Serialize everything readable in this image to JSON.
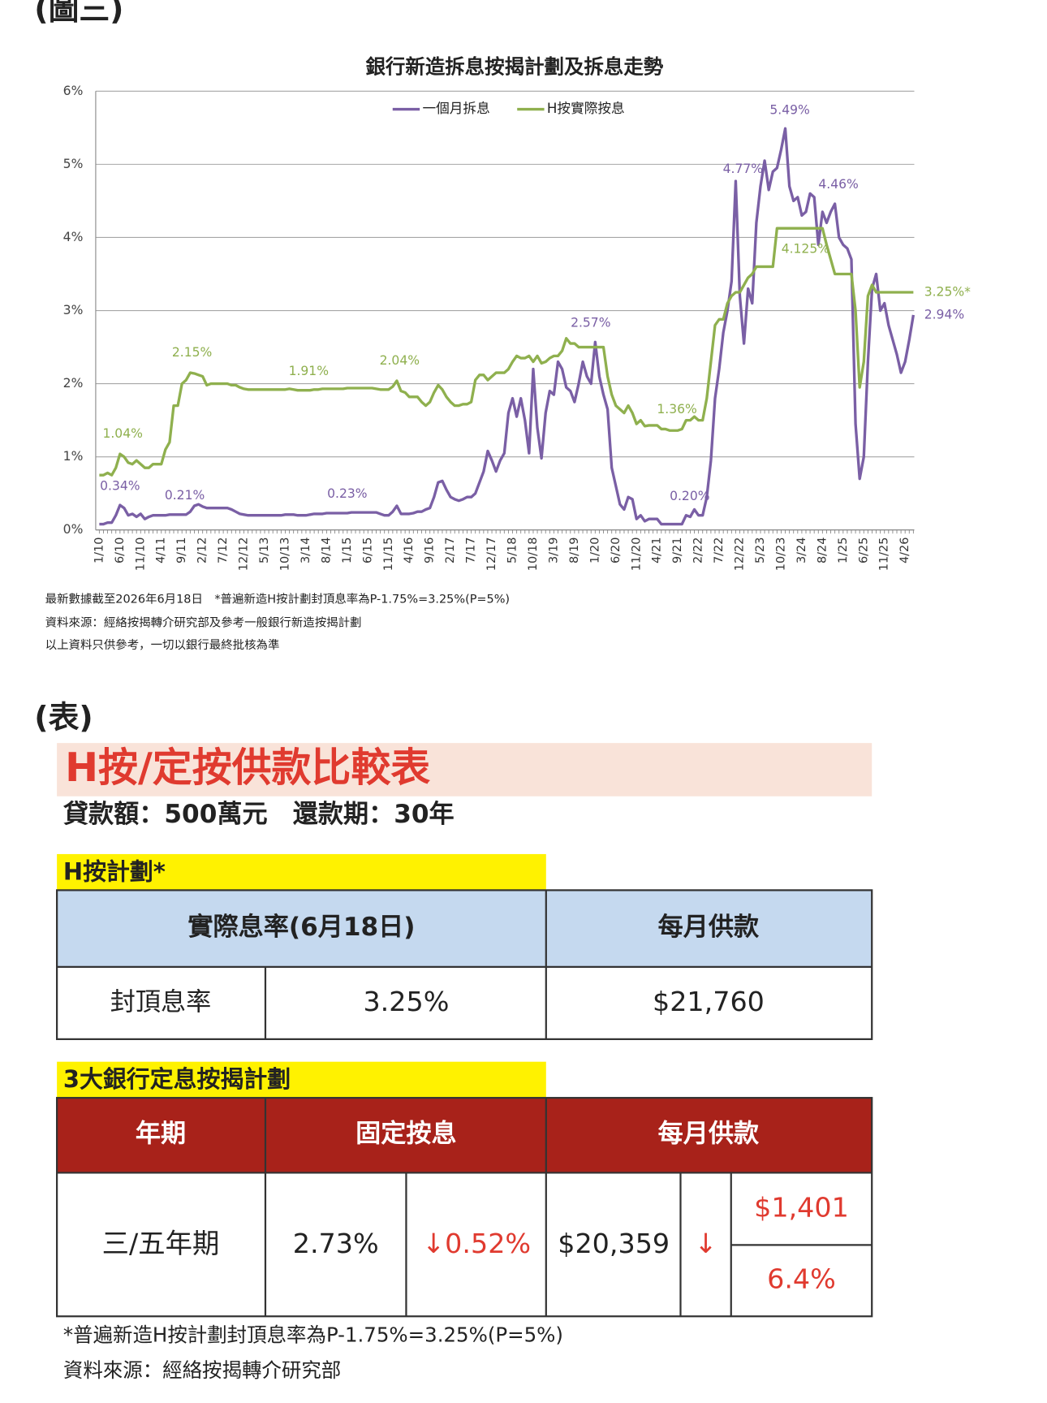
{
  "headers": {
    "figure": "(圖三)",
    "table": "(表)"
  },
  "chart_data": {
    "type": "line",
    "title": "銀行新造拆息按揭計劃及拆息走勢",
    "categories": [
      "1/10",
      null,
      null,
      null,
      null,
      "6/10",
      null,
      null,
      null,
      null,
      "11/10",
      null,
      null,
      null,
      null,
      "4/11",
      null,
      null,
      null,
      null,
      "9/11",
      null,
      null,
      null,
      null,
      "2/12",
      null,
      null,
      null,
      null,
      "7/12",
      null,
      null,
      null,
      null,
      "12/12",
      null,
      null,
      null,
      null,
      "5/13",
      null,
      null,
      null,
      null,
      "10/13",
      null,
      null,
      null,
      null,
      "3/14",
      null,
      null,
      null,
      null,
      "8/14",
      null,
      null,
      null,
      null,
      "1/15",
      null,
      null,
      null,
      null,
      "6/15",
      null,
      null,
      null,
      null,
      "11/15",
      null,
      null,
      null,
      null,
      "4/16",
      null,
      null,
      null,
      null,
      "9/16",
      null,
      null,
      null,
      null,
      "2/17",
      null,
      null,
      null,
      null,
      "7/17",
      null,
      null,
      null,
      null,
      "12/17",
      null,
      null,
      null,
      null,
      "5/18",
      null,
      null,
      null,
      null,
      "10/18",
      null,
      null,
      null,
      null,
      "3/19",
      null,
      null,
      null,
      null,
      "8/19",
      null,
      null,
      null,
      null,
      "1/20",
      null,
      null,
      null,
      null,
      "6/20",
      null,
      null,
      null,
      null,
      "11/20",
      null,
      null,
      null,
      null,
      "4/21",
      null,
      null,
      null,
      null,
      "9/21",
      null,
      null,
      null,
      null,
      "2/22",
      null,
      null,
      null,
      null,
      "7/22",
      null,
      null,
      null,
      null,
      "12/22",
      null,
      null,
      null,
      null,
      "5/23",
      null,
      null,
      null,
      null,
      "10/23",
      null,
      null,
      null,
      null,
      "3/24",
      null,
      null,
      null,
      null,
      "8/24",
      null,
      null,
      null,
      null,
      "1/25",
      null,
      null,
      null,
      null,
      "6/25",
      null,
      null,
      null,
      null,
      "11/25",
      null,
      null,
      null,
      null,
      "4/26",
      null,
      null
    ],
    "series": [
      {
        "name": "一個月拆息",
        "color": "#7a5fa5",
        "values": [
          0.08,
          0.08,
          0.1,
          0.1,
          0.2,
          0.34,
          0.3,
          0.2,
          0.22,
          0.18,
          0.22,
          0.15,
          0.18,
          0.2,
          0.2,
          0.2,
          0.2,
          0.21,
          0.21,
          0.21,
          0.21,
          0.21,
          0.25,
          0.33,
          0.35,
          0.32,
          0.3,
          0.3,
          0.3,
          0.3,
          0.3,
          0.3,
          0.28,
          0.25,
          0.22,
          0.21,
          0.2,
          0.2,
          0.2,
          0.2,
          0.2,
          0.2,
          0.2,
          0.2,
          0.2,
          0.21,
          0.21,
          0.21,
          0.2,
          0.2,
          0.2,
          0.21,
          0.22,
          0.22,
          0.22,
          0.23,
          0.23,
          0.23,
          0.23,
          0.23,
          0.23,
          0.24,
          0.24,
          0.24,
          0.24,
          0.24,
          0.24,
          0.24,
          0.22,
          0.2,
          0.2,
          0.25,
          0.33,
          0.22,
          0.22,
          0.22,
          0.23,
          0.25,
          0.25,
          0.28,
          0.3,
          0.45,
          0.65,
          0.67,
          0.55,
          0.45,
          0.42,
          0.4,
          0.42,
          0.45,
          0.45,
          0.5,
          0.65,
          0.8,
          1.08,
          0.95,
          0.8,
          0.95,
          1.05,
          1.6,
          1.8,
          1.55,
          1.8,
          1.5,
          1.05,
          2.2,
          1.4,
          0.98,
          1.6,
          1.9,
          1.85,
          2.3,
          2.2,
          1.95,
          1.9,
          1.75,
          2.0,
          2.3,
          2.1,
          2.0,
          2.57,
          2.1,
          1.85,
          1.65,
          0.85,
          0.6,
          0.35,
          0.28,
          0.45,
          0.42,
          0.15,
          0.2,
          0.12,
          0.15,
          0.15,
          0.15,
          0.08,
          0.08,
          0.08,
          0.08,
          0.08,
          0.08,
          0.2,
          0.18,
          0.28,
          0.2,
          0.2,
          0.45,
          0.95,
          1.8,
          2.2,
          2.7,
          3.0,
          3.4,
          4.77,
          3.2,
          2.55,
          3.3,
          3.1,
          4.2,
          4.7,
          5.05,
          4.65,
          4.9,
          4.95,
          5.2,
          5.49,
          4.7,
          4.5,
          4.55,
          4.3,
          4.35,
          4.6,
          4.55,
          3.9,
          4.35,
          4.2,
          4.35,
          4.46,
          4.0,
          3.9,
          3.85,
          3.7,
          1.45,
          0.7,
          1.0,
          2.3,
          3.3,
          3.5,
          3.0,
          3.1,
          2.8,
          2.6,
          2.4,
          2.15,
          2.3,
          2.6,
          2.94
        ]
      },
      {
        "name": "H按實際按息",
        "color": "#8fb04e",
        "values": [
          0.75,
          0.75,
          0.78,
          0.75,
          0.85,
          1.04,
          1.0,
          0.92,
          0.9,
          0.95,
          0.9,
          0.85,
          0.85,
          0.9,
          0.9,
          0.9,
          1.1,
          1.2,
          1.7,
          1.7,
          2.0,
          2.05,
          2.15,
          2.14,
          2.12,
          2.1,
          1.98,
          2.0,
          2.0,
          2.0,
          2.0,
          2.0,
          1.98,
          1.98,
          1.95,
          1.93,
          1.92,
          1.92,
          1.92,
          1.92,
          1.92,
          1.92,
          1.92,
          1.92,
          1.92,
          1.92,
          1.93,
          1.92,
          1.91,
          1.91,
          1.91,
          1.91,
          1.92,
          1.92,
          1.93,
          1.93,
          1.93,
          1.93,
          1.93,
          1.93,
          1.94,
          1.94,
          1.94,
          1.94,
          1.94,
          1.94,
          1.94,
          1.93,
          1.92,
          1.92,
          1.92,
          1.96,
          2.04,
          1.9,
          1.88,
          1.82,
          1.82,
          1.82,
          1.75,
          1.7,
          1.75,
          1.88,
          1.98,
          1.92,
          1.82,
          1.75,
          1.7,
          1.7,
          1.72,
          1.72,
          1.75,
          2.05,
          2.12,
          2.12,
          2.05,
          2.1,
          2.15,
          2.15,
          2.15,
          2.2,
          2.3,
          2.38,
          2.35,
          2.35,
          2.38,
          2.3,
          2.38,
          2.28,
          2.3,
          2.35,
          2.38,
          2.38,
          2.45,
          2.62,
          2.55,
          2.55,
          2.5,
          2.5,
          2.5,
          2.5,
          2.5,
          2.5,
          2.5,
          2.1,
          1.85,
          1.7,
          1.65,
          1.6,
          1.7,
          1.6,
          1.45,
          1.5,
          1.42,
          1.43,
          1.43,
          1.43,
          1.38,
          1.38,
          1.36,
          1.36,
          1.36,
          1.38,
          1.5,
          1.5,
          1.55,
          1.5,
          1.5,
          1.8,
          2.3,
          2.8,
          2.88,
          2.88,
          3.1,
          3.2,
          3.25,
          3.25,
          3.35,
          3.45,
          3.5,
          3.6,
          3.6,
          3.6,
          3.6,
          3.6,
          4.125,
          4.125,
          4.125,
          4.125,
          4.125,
          4.125,
          4.125,
          4.125,
          4.125,
          4.125,
          4.125,
          4.125,
          3.9,
          3.7,
          3.5,
          3.5,
          3.5,
          3.5,
          3.5,
          3.0,
          1.95,
          2.3,
          3.2,
          3.35,
          3.25,
          3.25,
          3.25,
          3.25,
          3.25,
          3.25,
          3.25,
          3.25,
          3.25,
          3.25
        ]
      }
    ],
    "annotations": [
      {
        "series": 0,
        "point": 5,
        "text": "0.34%"
      },
      {
        "series": 0,
        "point": 20,
        "text": "0.21%"
      },
      {
        "series": 0,
        "point": 60,
        "text": "0.23%"
      },
      {
        "series": 0,
        "point": 120,
        "text": "2.57%"
      },
      {
        "series": 0,
        "point": 142,
        "text": "0.20%"
      },
      {
        "series": 0,
        "point": 154,
        "text": "4.77%"
      },
      {
        "series": 0,
        "point": 166,
        "text": "5.49%"
      },
      {
        "series": 0,
        "point": 178,
        "text": "4.46%"
      },
      {
        "series": 0,
        "point": 197,
        "text": "2.94%"
      },
      {
        "series": 1,
        "point": 5,
        "text": "1.04%"
      },
      {
        "series": 1,
        "point": 22,
        "text": "2.15%"
      },
      {
        "series": 1,
        "point": 50,
        "text": "1.91%"
      },
      {
        "series": 1,
        "point": 72,
        "text": "2.04%"
      },
      {
        "series": 1,
        "point": 140,
        "text": "1.36%"
      },
      {
        "series": 1,
        "point": 170,
        "text": "4.125%"
      },
      {
        "series": 1,
        "point": 197,
        "text": "3.25%*"
      }
    ],
    "ylim": [
      0,
      6
    ],
    "yticks": [
      {
        "value": 0,
        "label": "0%"
      },
      {
        "value": 1,
        "label": "1%"
      },
      {
        "value": 2,
        "label": "2%"
      },
      {
        "value": 3,
        "label": "3%"
      },
      {
        "value": 4,
        "label": "4%"
      },
      {
        "value": 5,
        "label": "5%"
      },
      {
        "value": 6,
        "label": "6%"
      }
    ],
    "grid": true,
    "legend": "top"
  },
  "chart_notes": [
    "最新數據截至2026年6月18日　*普遍新造H按計劃封頂息率為P-1.75%=3.25%(P=5%)",
    "資料來源：經絡按揭轉介研究部及參考一般銀行新造按揭計劃",
    "以上資料只供參考，一切以銀行最終批核為準"
  ],
  "comparison": {
    "title": "H按/定按供款比較表",
    "loan": "貸款額：500萬元　還款期：30年",
    "h_plan": {
      "title": "H按計劃*",
      "columns": [
        "實際息率(6月18日)",
        "每月供款"
      ],
      "row": [
        "封頂息率",
        "3.25%",
        "$21,760"
      ]
    },
    "fixed_plan": {
      "title": "3大銀行定息按揭計劃",
      "columns": [
        "年期",
        "固定按息",
        "每月供款"
      ],
      "row": {
        "term": "三/五年期",
        "rate": "2.73%",
        "rate_diff": "↓0.52%",
        "payment": "$20,359",
        "arrow": "↓",
        "saving": "$1,401",
        "saving_pct": "6.4%"
      }
    },
    "footnotes": [
      "*普遍新造H按計劃封頂息率為P-1.75%=3.25%(P=5%)",
      "資料來源：經絡按揭轉介研究部"
    ]
  }
}
